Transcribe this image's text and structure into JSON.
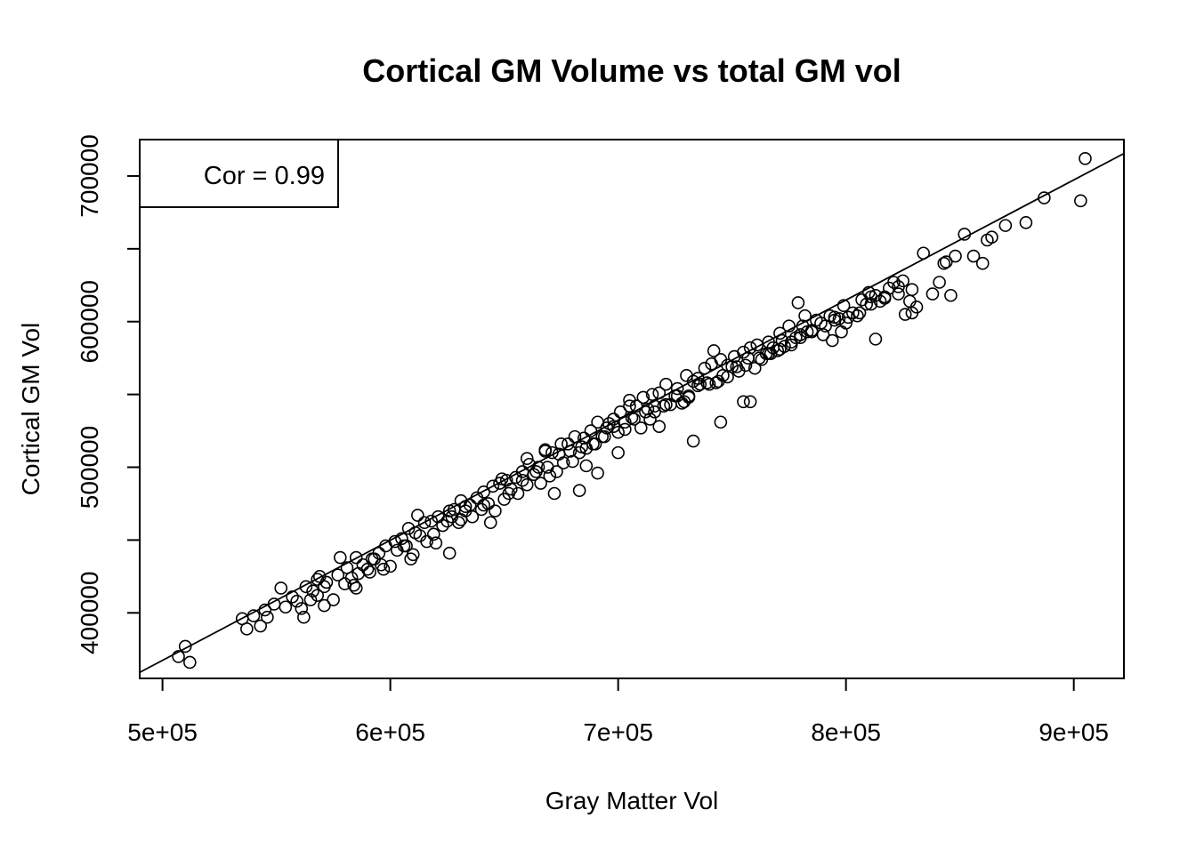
{
  "chart_data": {
    "type": "scatter",
    "title": "Cortical GM Volume vs total GM vol",
    "xlabel": "Gray Matter Vol",
    "ylabel": "Cortical GM Vol",
    "xlim": [
      490000,
      922000
    ],
    "ylim": [
      355000,
      725000
    ],
    "x_ticks": [
      {
        "value": 500000,
        "label": "5e+05"
      },
      {
        "value": 600000,
        "label": "6e+05"
      },
      {
        "value": 700000,
        "label": "7e+05"
      },
      {
        "value": 800000,
        "label": "8e+05"
      },
      {
        "value": 900000,
        "label": "9e+05"
      }
    ],
    "y_ticks": [
      {
        "value": 400000,
        "label": "400000"
      },
      {
        "value": 450000,
        "label": ""
      },
      {
        "value": 500000,
        "label": "500000"
      },
      {
        "value": 550000,
        "label": ""
      },
      {
        "value": 600000,
        "label": "600000"
      },
      {
        "value": 650000,
        "label": ""
      },
      {
        "value": 700000,
        "label": "700000"
      }
    ],
    "legend": {
      "text": "Cor = 0.99",
      "position": "top-left"
    },
    "grid": false,
    "regression_line": {
      "slope": 0.8248,
      "intercept": -45010
    },
    "points": {
      "x": [
        507000,
        510000,
        512000,
        535000,
        537000,
        540000,
        543000,
        545000,
        546000,
        549000,
        552000,
        554000,
        557000,
        559000,
        561000,
        563000,
        565000,
        566000,
        568000,
        569000,
        571000,
        572000,
        575000,
        577000,
        578000,
        580000,
        581000,
        583000,
        585000,
        586000,
        588000,
        590000,
        591000,
        593000,
        595000,
        596000,
        598000,
        600000,
        602000,
        603000,
        605000,
        606000,
        608000,
        610000,
        611000,
        613000,
        615000,
        616000,
        618000,
        620000,
        621000,
        623000,
        625000,
        626000,
        628000,
        630000,
        631000,
        633000,
        635000,
        636000,
        638000,
        640000,
        641000,
        643000,
        645000,
        646000,
        648000,
        650000,
        651000,
        653000,
        655000,
        656000,
        658000,
        660000,
        661000,
        663000,
        665000,
        666000,
        668000,
        670000,
        671000,
        673000,
        675000,
        676000,
        678000,
        680000,
        681000,
        683000,
        685000,
        686000,
        688000,
        690000,
        691000,
        693000,
        695000,
        696000,
        698000,
        700000,
        701000,
        703000,
        705000,
        706000,
        708000,
        710000,
        711000,
        713000,
        715000,
        716000,
        718000,
        720000,
        721000,
        723000,
        725000,
        726000,
        728000,
        730000,
        731000,
        733000,
        735000,
        736000,
        738000,
        740000,
        741000,
        743000,
        745000,
        746000,
        748000,
        750000,
        751000,
        753000,
        755000,
        756000,
        758000,
        760000,
        761000,
        763000,
        765000,
        766000,
        768000,
        770000,
        771000,
        773000,
        775000,
        776000,
        778000,
        780000,
        781000,
        783000,
        785000,
        787000,
        789000,
        791000,
        793000,
        795000,
        797000,
        799000,
        801000,
        803000,
        805000,
        807000,
        809000,
        811000,
        813000,
        815000,
        817000,
        819000,
        821000,
        823000,
        825000,
        828000,
        831000,
        834000,
        838000,
        841000,
        844000,
        848000,
        852000,
        856000,
        860000,
        864000,
        870000,
        879000,
        887000,
        903000,
        905000,
        562000,
        571000,
        584000,
        597000,
        607000,
        619000,
        627000,
        633000,
        641000,
        649000,
        658000,
        664000,
        669000,
        674000,
        679000,
        684000,
        689000,
        694000,
        698000,
        703000,
        707000,
        712000,
        716000,
        721000,
        726000,
        731000,
        735000,
        739000,
        744000,
        748000,
        752000,
        757000,
        762000,
        766000,
        771000,
        776000,
        780000,
        785000,
        790000,
        795000,
        800000,
        806000,
        811000,
        817000,
        823000,
        829000,
        585000,
        612000,
        626000,
        644000,
        660000,
        672000,
        683000,
        691000,
        705000,
        718000,
        733000,
        745000,
        758000,
        772000,
        779000,
        794000,
        810000,
        826000,
        843000,
        862000,
        568000,
        592000,
        609000,
        631000,
        652000,
        668000,
        686000,
        700000,
        714000,
        729000,
        742000,
        755000,
        767000,
        782000,
        798000,
        813000,
        829000,
        846000
      ],
      "y": [
        370000,
        377000,
        366000,
        396000,
        389000,
        398000,
        391000,
        402000,
        397000,
        406000,
        417000,
        404000,
        411000,
        408000,
        403000,
        418000,
        409000,
        415000,
        412000,
        425000,
        418000,
        421000,
        409000,
        426000,
        438000,
        420000,
        431000,
        424000,
        438000,
        427000,
        433000,
        430000,
        428000,
        437000,
        441000,
        433000,
        446000,
        432000,
        449000,
        443000,
        451000,
        446000,
        458000,
        440000,
        455000,
        453000,
        462000,
        449000,
        463000,
        448000,
        466000,
        460000,
        463000,
        470000,
        471000,
        462000,
        477000,
        470000,
        474000,
        466000,
        479000,
        471000,
        483000,
        475000,
        487000,
        470000,
        489000,
        478000,
        491000,
        485000,
        493000,
        482000,
        497000,
        488000,
        502000,
        495000,
        500000,
        489000,
        511000,
        494000,
        510000,
        497000,
        516000,
        503000,
        516000,
        504000,
        521000,
        510000,
        520000,
        513000,
        525000,
        516000,
        531000,
        521000,
        527000,
        530000,
        533000,
        524000,
        538000,
        526000,
        542000,
        534000,
        542000,
        527000,
        548000,
        540000,
        550000,
        538000,
        551000,
        542000,
        557000,
        543000,
        549000,
        554000,
        544000,
        563000,
        548000,
        559000,
        561000,
        557000,
        568000,
        557000,
        571000,
        558000,
        574000,
        563000,
        570000,
        569000,
        576000,
        566000,
        579000,
        570000,
        582000,
        568000,
        584000,
        574000,
        578000,
        586000,
        582000,
        580000,
        592000,
        583000,
        597000,
        586000,
        589000,
        591000,
        597000,
        593000,
        594000,
        601000,
        599000,
        597000,
        604000,
        603000,
        602000,
        611000,
        603000,
        606000,
        604000,
        615000,
        612000,
        617000,
        618000,
        614000,
        616000,
        623000,
        627000,
        624000,
        628000,
        614000,
        610000,
        647000,
        619000,
        627000,
        641000,
        645000,
        660000,
        645000,
        640000,
        658000,
        666000,
        668000,
        685000,
        683000,
        712000,
        397000,
        405000,
        419000,
        430000,
        446000,
        454000,
        466000,
        473000,
        474000,
        492000,
        491000,
        497000,
        500000,
        509000,
        511000,
        514000,
        516000,
        521000,
        528000,
        531000,
        533000,
        538000,
        542000,
        543000,
        549000,
        549000,
        556000,
        558000,
        559000,
        562000,
        569000,
        575000,
        575000,
        578000,
        581000,
        584000,
        589000,
        593000,
        591000,
        601000,
        599000,
        606000,
        612000,
        617000,
        619000,
        622000,
        417000,
        467000,
        441000,
        462000,
        506000,
        482000,
        484000,
        496000,
        546000,
        528000,
        518000,
        531000,
        545000,
        587000,
        613000,
        587000,
        620000,
        605000,
        640000,
        656000,
        423000,
        437000,
        437000,
        464000,
        482000,
        512000,
        501000,
        510000,
        533000,
        545000,
        580000,
        545000,
        578000,
        604000,
        593000,
        588000,
        606000,
        618000
      ]
    }
  }
}
